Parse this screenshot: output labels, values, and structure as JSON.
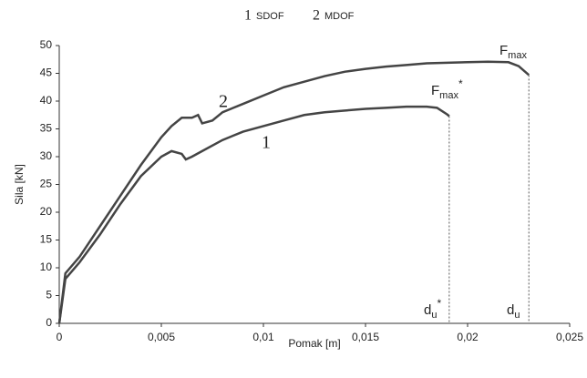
{
  "chart_data": {
    "type": "line",
    "x_label": "Pomak [m]",
    "y_label": "Sila [kN]",
    "xlim": [
      0,
      0.025
    ],
    "ylim": [
      0,
      50
    ],
    "xticks": [
      0,
      {
        "value": 0.005,
        "label": "0,005"
      },
      {
        "value": 0.01,
        "label": "0,01"
      },
      {
        "value": 0.015,
        "label": "0,015"
      },
      {
        "value": 0.02,
        "label": "0,02"
      },
      {
        "value": 0.025,
        "label": "0,025"
      }
    ],
    "yticks": [
      0,
      5,
      10,
      15,
      20,
      25,
      30,
      35,
      40,
      45,
      50
    ],
    "grid": false,
    "series": [
      {
        "name": "SDOF",
        "label": "1",
        "color": "#444444",
        "x": [
          0,
          0.0003,
          0.001,
          0.002,
          0.003,
          0.004,
          0.005,
          0.0055,
          0.006,
          0.0062,
          0.0065,
          0.007,
          0.008,
          0.009,
          0.01,
          0.011,
          0.012,
          0.013,
          0.014,
          0.015,
          0.016,
          0.017,
          0.018,
          0.0185,
          0.019,
          0.0191
        ],
        "values": [
          0,
          8,
          11,
          16,
          21.5,
          26.5,
          30,
          31,
          30.5,
          29.5,
          30,
          31,
          33,
          34.5,
          35.5,
          36.5,
          37.5,
          38,
          38.3,
          38.6,
          38.8,
          39,
          39,
          38.8,
          37.6,
          37.3
        ]
      },
      {
        "name": "MDOF",
        "label": "2",
        "color": "#444444",
        "x": [
          0,
          0.0003,
          0.001,
          0.002,
          0.003,
          0.004,
          0.005,
          0.0055,
          0.006,
          0.0065,
          0.0068,
          0.007,
          0.0075,
          0.008,
          0.009,
          0.01,
          0.011,
          0.012,
          0.013,
          0.014,
          0.015,
          0.016,
          0.017,
          0.018,
          0.019,
          0.02,
          0.021,
          0.022,
          0.0225,
          0.023
        ],
        "values": [
          0,
          9,
          12,
          17.5,
          23,
          28.5,
          33.5,
          35.5,
          37,
          37,
          37.5,
          36,
          36.5,
          38,
          39.5,
          41,
          42.5,
          43.5,
          44.5,
          45.3,
          45.8,
          46.2,
          46.5,
          46.8,
          46.9,
          47,
          47.1,
          47,
          46.3,
          44.7
        ]
      }
    ],
    "annotations": [
      {
        "base": "F",
        "sub": "max",
        "sup": "*"
      },
      {
        "base": "F",
        "sub": "max"
      },
      {
        "base": "d",
        "sub": "u",
        "sup": "*"
      },
      {
        "base": "d",
        "sub": "u"
      }
    ]
  }
}
